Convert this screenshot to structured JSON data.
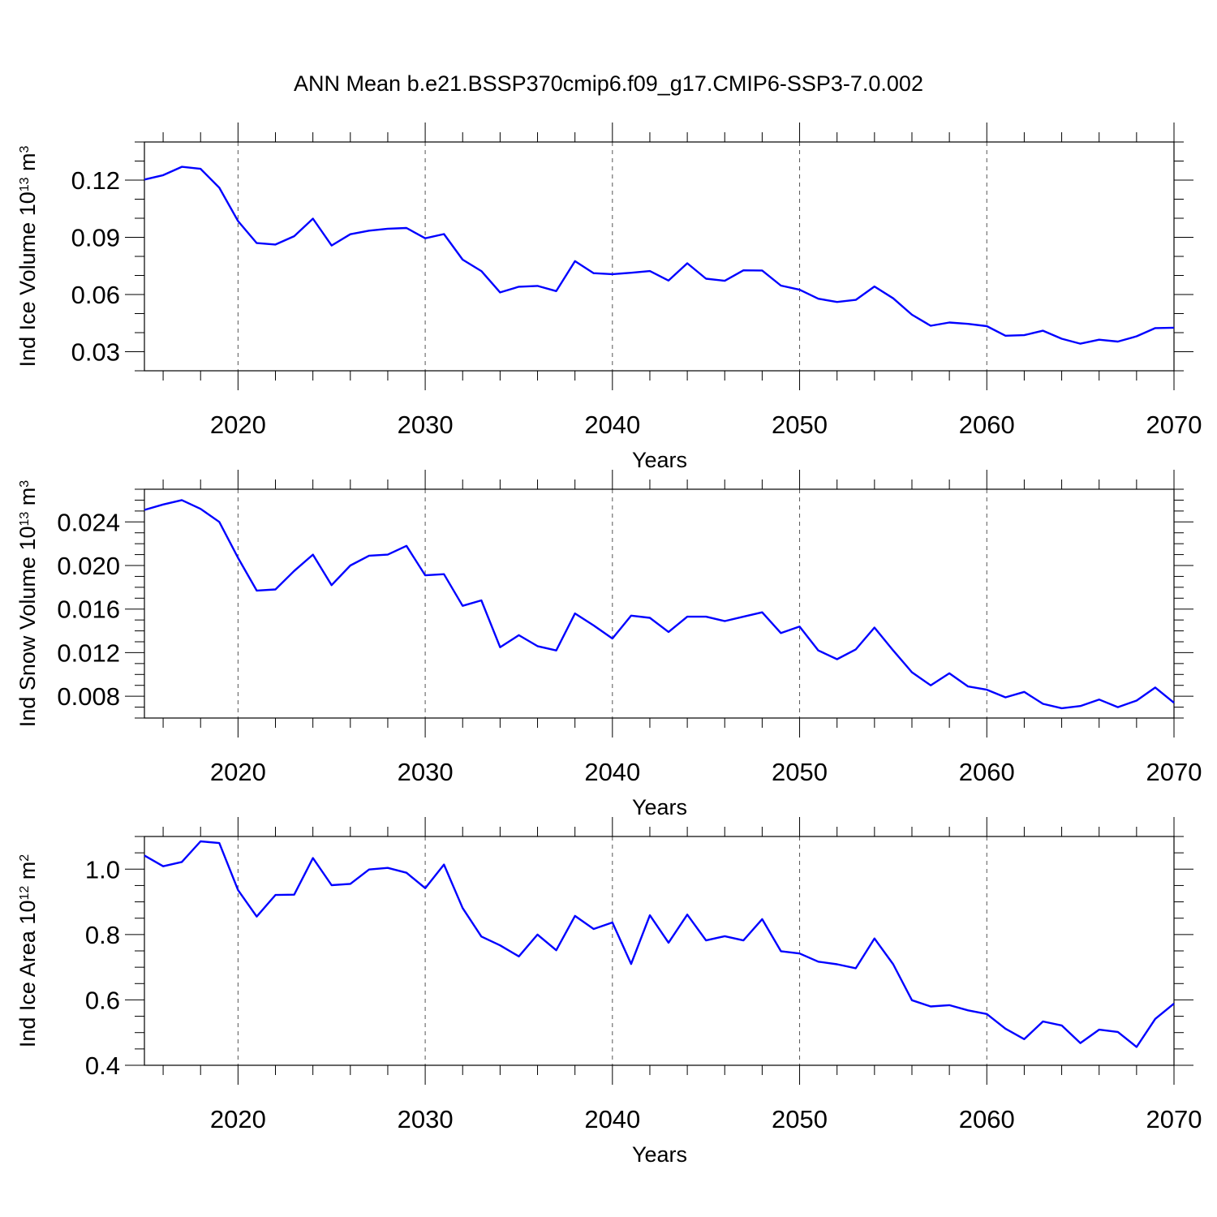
{
  "title": "ANN Mean b.e21.BSSP370cmip6.f09_g17.CMIP6-SSP3-7.0.002",
  "colors": {
    "line": "#0000ff",
    "axis": "#000000",
    "grid": "#555555"
  },
  "chart_data": [
    {
      "type": "line",
      "ylabel": {
        "text": "Ind Ice Volume 10",
        "exp": "13",
        "unit": " m",
        "unit_exp": "3"
      },
      "xlabel": "Years",
      "xlim": [
        2015,
        2070
      ],
      "ylim": [
        0.02,
        0.14
      ],
      "xticks": [
        2020,
        2030,
        2040,
        2050,
        2060,
        2070
      ],
      "xtick_labels": [
        "2020",
        "2030",
        "2040",
        "2050",
        "2060",
        "2070"
      ],
      "yticks": [
        0.03,
        0.06,
        0.09,
        0.12
      ],
      "ytick_labels": [
        "0.03",
        "0.06",
        "0.09",
        "0.12"
      ],
      "yminor_step": 0.01,
      "grid": "vertical dashed",
      "x": [
        2015,
        2016,
        2017,
        2018,
        2019,
        2020,
        2021,
        2022,
        2023,
        2024,
        2025,
        2026,
        2027,
        2028,
        2029,
        2030,
        2031,
        2032,
        2033,
        2034,
        2035,
        2036,
        2037,
        2038,
        2039,
        2040,
        2041,
        2042,
        2043,
        2044,
        2045,
        2046,
        2047,
        2048,
        2049,
        2050,
        2051,
        2052,
        2053,
        2054,
        2055,
        2056,
        2057,
        2058,
        2059,
        2060,
        2061,
        2062,
        2063,
        2064,
        2065,
        2066,
        2067,
        2068,
        2069,
        2070
      ],
      "series": [
        {
          "values": [
            0.1203,
            0.1226,
            0.127,
            0.1259,
            0.116,
            0.0985,
            0.087,
            0.0862,
            0.0906,
            0.0998,
            0.0857,
            0.0916,
            0.0935,
            0.0945,
            0.0949,
            0.0895,
            0.0917,
            0.0783,
            0.0723,
            0.0611,
            0.0641,
            0.0645,
            0.0618,
            0.0775,
            0.0712,
            0.0707,
            0.0714,
            0.0723,
            0.0673,
            0.0764,
            0.0683,
            0.0672,
            0.0727,
            0.0726,
            0.0647,
            0.0625,
            0.0578,
            0.0561,
            0.0572,
            0.0642,
            0.058,
            0.0494,
            0.0436,
            0.0453,
            0.0446,
            0.0434,
            0.0384,
            0.0387,
            0.041,
            0.0368,
            0.0342,
            0.0363,
            0.0353,
            0.0381,
            0.0424,
            0.0426
          ]
        }
      ]
    },
    {
      "type": "line",
      "ylabel": {
        "text": "Ind Snow Volume 10",
        "exp": "13",
        "unit": " m",
        "unit_exp": "3"
      },
      "xlabel": "Years",
      "xlim": [
        2015,
        2070
      ],
      "ylim": [
        0.006,
        0.027
      ],
      "xticks": [
        2020,
        2030,
        2040,
        2050,
        2060,
        2070
      ],
      "xtick_labels": [
        "2020",
        "2030",
        "2040",
        "2050",
        "2060",
        "2070"
      ],
      "yticks": [
        0.008,
        0.012,
        0.016,
        0.02,
        0.024
      ],
      "ytick_labels": [
        "0.008",
        "0.012",
        "0.016",
        "0.020",
        "0.024"
      ],
      "yminor_step": 0.001,
      "grid": "vertical dashed",
      "x": [
        2015,
        2016,
        2017,
        2018,
        2019,
        2020,
        2021,
        2022,
        2023,
        2024,
        2025,
        2026,
        2027,
        2028,
        2029,
        2030,
        2031,
        2032,
        2033,
        2034,
        2035,
        2036,
        2037,
        2038,
        2039,
        2040,
        2041,
        2042,
        2043,
        2044,
        2045,
        2046,
        2047,
        2048,
        2049,
        2050,
        2051,
        2052,
        2053,
        2054,
        2055,
        2056,
        2057,
        2058,
        2059,
        2060,
        2061,
        2062,
        2063,
        2064,
        2065,
        2066,
        2067,
        2068,
        2069,
        2070
      ],
      "series": [
        {
          "values": [
            0.0251,
            0.0256,
            0.026,
            0.0252,
            0.024,
            0.0207,
            0.0177,
            0.0178,
            0.0195,
            0.021,
            0.0182,
            0.02,
            0.0209,
            0.021,
            0.0218,
            0.0191,
            0.0192,
            0.0163,
            0.0168,
            0.0125,
            0.0136,
            0.0126,
            0.0122,
            0.0156,
            0.0145,
            0.0133,
            0.0154,
            0.0152,
            0.0139,
            0.0153,
            0.0153,
            0.0149,
            0.0153,
            0.0157,
            0.0138,
            0.0144,
            0.0122,
            0.0114,
            0.0123,
            0.0143,
            0.0122,
            0.0102,
            0.009,
            0.0101,
            0.0089,
            0.0086,
            0.0079,
            0.0084,
            0.0073,
            0.0069,
            0.0071,
            0.0077,
            0.007,
            0.0076,
            0.0088,
            0.0074
          ]
        }
      ]
    },
    {
      "type": "line",
      "ylabel": {
        "text": "Ind Ice Area 10",
        "exp": "12",
        "unit": " m",
        "unit_exp": "2"
      },
      "xlabel": "Years",
      "xlim": [
        2015,
        2070
      ],
      "ylim": [
        0.4,
        1.1
      ],
      "xticks": [
        2020,
        2030,
        2040,
        2050,
        2060,
        2070
      ],
      "xtick_labels": [
        "2020",
        "2030",
        "2040",
        "2050",
        "2060",
        "2070"
      ],
      "yticks": [
        0.4,
        0.6,
        0.8,
        1.0
      ],
      "ytick_labels": [
        "0.4",
        "0.6",
        "0.8",
        "1.0"
      ],
      "yminor_step": 0.05,
      "grid": "vertical dashed",
      "x": [
        2015,
        2016,
        2017,
        2018,
        2019,
        2020,
        2021,
        2022,
        2023,
        2024,
        2025,
        2026,
        2027,
        2028,
        2029,
        2030,
        2031,
        2032,
        2033,
        2034,
        2035,
        2036,
        2037,
        2038,
        2039,
        2040,
        2041,
        2042,
        2043,
        2044,
        2045,
        2046,
        2047,
        2048,
        2049,
        2050,
        2051,
        2052,
        2053,
        2054,
        2055,
        2056,
        2057,
        2058,
        2059,
        2060,
        2061,
        2062,
        2063,
        2064,
        2065,
        2066,
        2067,
        2068,
        2069,
        2070
      ],
      "series": [
        {
          "values": [
            1.042,
            1.009,
            1.022,
            1.085,
            1.08,
            0.936,
            0.855,
            0.921,
            0.922,
            1.034,
            0.951,
            0.955,
            0.999,
            1.004,
            0.989,
            0.942,
            1.014,
            0.881,
            0.794,
            0.767,
            0.733,
            0.8,
            0.752,
            0.857,
            0.817,
            0.837,
            0.71,
            0.859,
            0.775,
            0.861,
            0.782,
            0.795,
            0.782,
            0.847,
            0.749,
            0.742,
            0.717,
            0.709,
            0.697,
            0.788,
            0.709,
            0.599,
            0.58,
            0.584,
            0.568,
            0.557,
            0.512,
            0.48,
            0.534,
            0.522,
            0.468,
            0.509,
            0.502,
            0.456,
            0.542,
            0.589
          ]
        }
      ]
    }
  ]
}
